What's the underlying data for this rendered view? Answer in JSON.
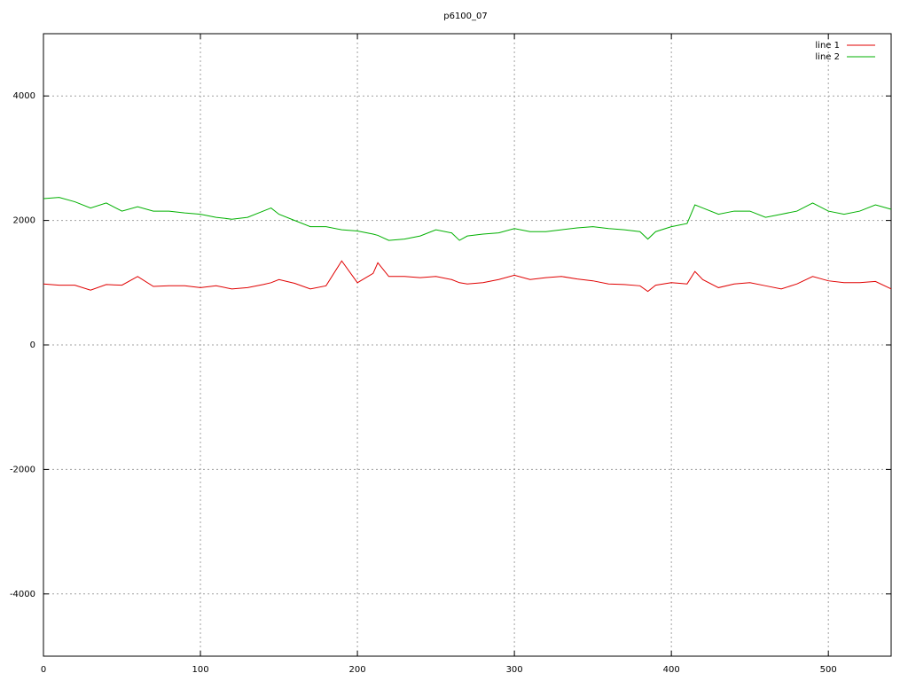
{
  "chart_data": {
    "type": "line",
    "title": "p6100_07",
    "x": [
      0,
      10,
      20,
      30,
      40,
      50,
      60,
      70,
      80,
      90,
      100,
      110,
      120,
      130,
      140,
      145,
      150,
      160,
      170,
      180,
      190,
      200,
      210,
      213,
      220,
      230,
      240,
      250,
      260,
      265,
      270,
      280,
      290,
      300,
      310,
      320,
      330,
      340,
      350,
      360,
      370,
      380,
      385,
      390,
      400,
      410,
      415,
      420,
      430,
      440,
      450,
      460,
      470,
      480,
      490,
      500,
      510,
      520,
      530,
      540
    ],
    "series": [
      {
        "name": "line 1",
        "color": "#e00000",
        "values": [
          980,
          960,
          960,
          880,
          970,
          960,
          1100,
          940,
          950,
          950,
          920,
          950,
          900,
          920,
          970,
          1000,
          1050,
          990,
          900,
          950,
          1350,
          1000,
          1150,
          1320,
          1100,
          1100,
          1080,
          1100,
          1050,
          1000,
          980,
          1000,
          1050,
          1120,
          1050,
          1080,
          1100,
          1060,
          1030,
          980,
          970,
          950,
          860,
          960,
          1000,
          980,
          1180,
          1050,
          920,
          980,
          1000,
          950,
          900,
          980,
          1100,
          1030,
          1000,
          1000,
          1020,
          900
        ]
      },
      {
        "name": "line 2",
        "color": "#00b000",
        "values": [
          2350,
          2370,
          2300,
          2200,
          2280,
          2150,
          2220,
          2150,
          2150,
          2120,
          2100,
          2050,
          2020,
          2050,
          2150,
          2200,
          2100,
          2000,
          1900,
          1900,
          1850,
          1830,
          1780,
          1760,
          1680,
          1700,
          1750,
          1850,
          1800,
          1680,
          1750,
          1780,
          1800,
          1870,
          1820,
          1820,
          1850,
          1880,
          1900,
          1870,
          1850,
          1820,
          1700,
          1820,
          1900,
          1950,
          2250,
          2200,
          2100,
          2150,
          2150,
          2050,
          2100,
          2150,
          2280,
          2150,
          2100,
          2150,
          2250,
          2180
        ]
      }
    ],
    "xlim": [
      0,
      540
    ],
    "ylim": [
      -5000,
      5000
    ],
    "xticks": [
      0,
      100,
      200,
      300,
      400,
      500
    ],
    "yticks": [
      -4000,
      -2000,
      0,
      2000,
      4000
    ],
    "grid": true,
    "legend": "top-right"
  }
}
